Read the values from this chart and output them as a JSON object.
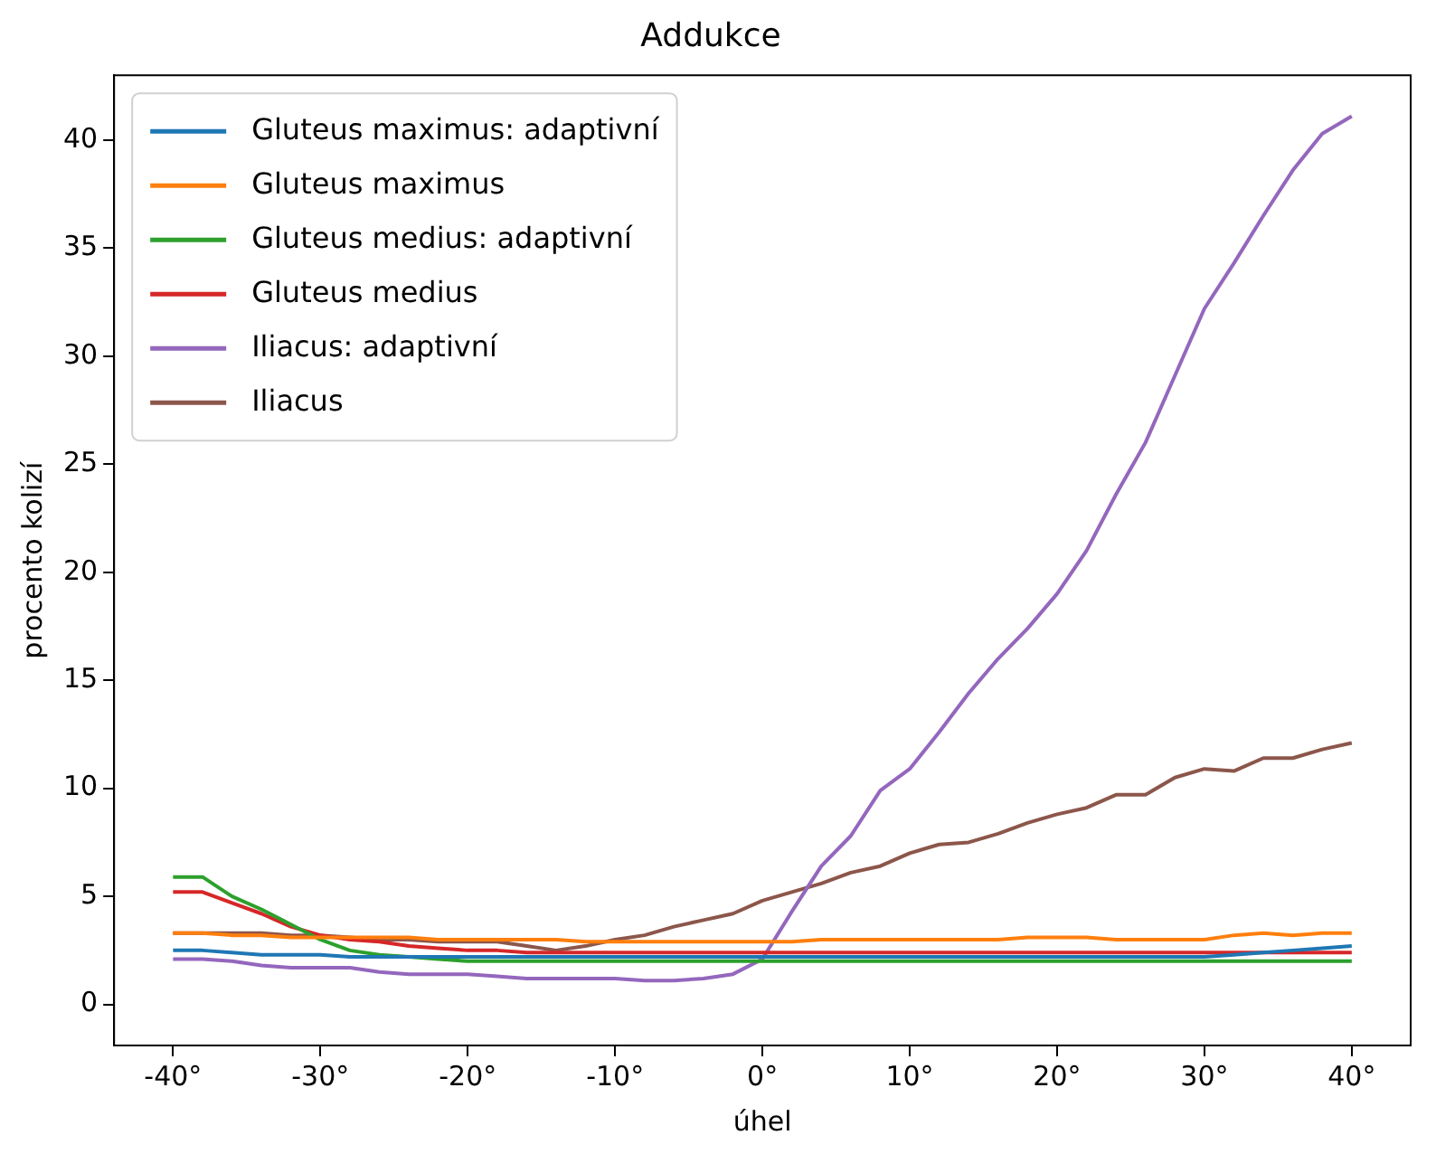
{
  "chart_data": {
    "type": "line",
    "title": "Addukce",
    "xlabel": "úhel",
    "ylabel": "procento kolizí",
    "x": [
      -40,
      -38,
      -36,
      -34,
      -32,
      -30,
      -28,
      -26,
      -24,
      -22,
      -20,
      -18,
      -16,
      -14,
      -12,
      -10,
      -8,
      -6,
      -4,
      -2,
      0,
      2,
      4,
      6,
      8,
      10,
      12,
      14,
      16,
      18,
      20,
      22,
      24,
      26,
      28,
      30,
      32,
      34,
      36,
      38,
      40
    ],
    "series": [
      {
        "name": "Gluteus maximus: adaptivní",
        "color": "#1f77b4",
        "values": [
          2.5,
          2.5,
          2.4,
          2.3,
          2.3,
          2.3,
          2.2,
          2.2,
          2.2,
          2.2,
          2.2,
          2.2,
          2.2,
          2.2,
          2.2,
          2.2,
          2.2,
          2.2,
          2.2,
          2.2,
          2.2,
          2.2,
          2.2,
          2.2,
          2.2,
          2.2,
          2.2,
          2.2,
          2.2,
          2.2,
          2.2,
          2.2,
          2.2,
          2.2,
          2.2,
          2.2,
          2.3,
          2.4,
          2.5,
          2.6,
          2.7
        ]
      },
      {
        "name": "Gluteus maximus",
        "color": "#ff7f0e",
        "values": [
          3.3,
          3.3,
          3.2,
          3.2,
          3.1,
          3.1,
          3.1,
          3.1,
          3.1,
          3.0,
          3.0,
          3.0,
          3.0,
          3.0,
          2.9,
          2.9,
          2.9,
          2.9,
          2.9,
          2.9,
          2.9,
          2.9,
          3.0,
          3.0,
          3.0,
          3.0,
          3.0,
          3.0,
          3.0,
          3.1,
          3.1,
          3.1,
          3.0,
          3.0,
          3.0,
          3.0,
          3.2,
          3.3,
          3.2,
          3.3,
          3.3
        ]
      },
      {
        "name": "Gluteus medius: adaptivní",
        "color": "#2ca02c",
        "values": [
          5.9,
          5.9,
          5.0,
          4.4,
          3.7,
          3.0,
          2.5,
          2.3,
          2.2,
          2.1,
          2.0,
          2.0,
          2.0,
          2.0,
          2.0,
          2.0,
          2.0,
          2.0,
          2.0,
          2.0,
          2.0,
          2.0,
          2.0,
          2.0,
          2.0,
          2.0,
          2.0,
          2.0,
          2.0,
          2.0,
          2.0,
          2.0,
          2.0,
          2.0,
          2.0,
          2.0,
          2.0,
          2.0,
          2.0,
          2.0,
          2.0
        ]
      },
      {
        "name": "Gluteus medius",
        "color": "#d62728",
        "values": [
          5.2,
          5.2,
          4.7,
          4.2,
          3.6,
          3.2,
          3.0,
          2.9,
          2.7,
          2.6,
          2.5,
          2.5,
          2.4,
          2.4,
          2.4,
          2.4,
          2.4,
          2.4,
          2.4,
          2.4,
          2.4,
          2.4,
          2.4,
          2.4,
          2.4,
          2.4,
          2.4,
          2.4,
          2.4,
          2.4,
          2.4,
          2.4,
          2.4,
          2.4,
          2.4,
          2.4,
          2.4,
          2.4,
          2.4,
          2.4,
          2.4
        ]
      },
      {
        "name": "Iliacus: adaptivní",
        "color": "#9467bd",
        "values": [
          2.1,
          2.1,
          2.0,
          1.8,
          1.7,
          1.7,
          1.7,
          1.5,
          1.4,
          1.4,
          1.4,
          1.3,
          1.2,
          1.2,
          1.2,
          1.2,
          1.1,
          1.1,
          1.2,
          1.4,
          2.1,
          4.3,
          6.4,
          7.8,
          9.9,
          10.9,
          12.6,
          14.4,
          16.0,
          17.4,
          19.0,
          21.0,
          23.6,
          26.0,
          29.1,
          32.2,
          34.3,
          36.5,
          38.6,
          40.3,
          41.1
        ]
      },
      {
        "name": "Iliacus",
        "color": "#8c564b",
        "values": [
          3.3,
          3.3,
          3.3,
          3.3,
          3.2,
          3.2,
          3.1,
          3.0,
          3.0,
          2.9,
          2.9,
          2.9,
          2.7,
          2.5,
          2.7,
          3.0,
          3.2,
          3.6,
          3.9,
          4.2,
          4.8,
          5.2,
          5.6,
          6.1,
          6.4,
          7.0,
          7.4,
          7.5,
          7.9,
          8.4,
          8.8,
          9.1,
          9.7,
          9.7,
          10.5,
          10.9,
          10.8,
          11.4,
          11.4,
          11.8,
          12.1
        ]
      }
    ],
    "xlim": [
      -44,
      44
    ],
    "xticks": [
      {
        "value": -40,
        "label": "-40°"
      },
      {
        "value": -30,
        "label": "-30°"
      },
      {
        "value": -20,
        "label": "-20°"
      },
      {
        "value": -10,
        "label": "-10°"
      },
      {
        "value": 0,
        "label": "0°"
      },
      {
        "value": 10,
        "label": "10°"
      },
      {
        "value": 20,
        "label": "20°"
      },
      {
        "value": 30,
        "label": "30°"
      },
      {
        "value": 40,
        "label": "40°"
      }
    ],
    "ylim": [
      -1.9,
      43
    ],
    "yticks": [
      0,
      5,
      10,
      15,
      20,
      25,
      30,
      35,
      40
    ],
    "grid": false,
    "legend": "top left",
    "marker": "none",
    "line_style": "solid"
  }
}
